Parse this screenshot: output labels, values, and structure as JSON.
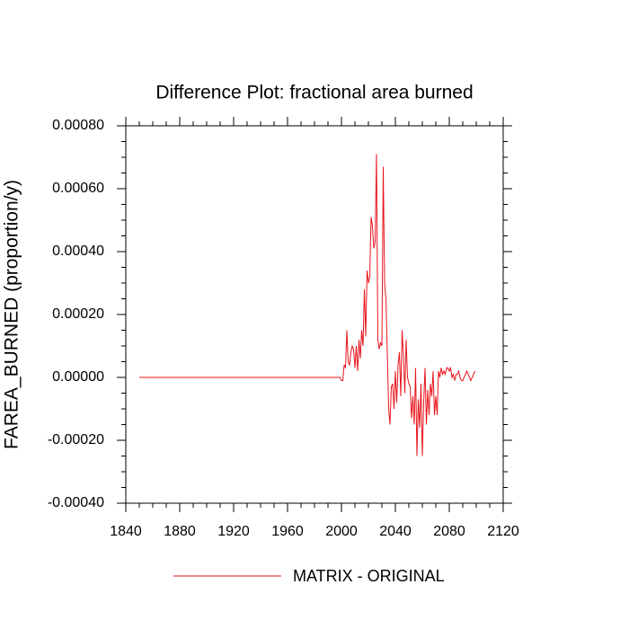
{
  "chart_data": {
    "type": "line",
    "title": "Difference Plot: fractional area burned",
    "ylabel": "FAREA_BURNED  (proportion/y)",
    "xlim": [
      1840,
      2120
    ],
    "xticks": [
      1840,
      1880,
      1920,
      1960,
      2000,
      2040,
      2080,
      2120
    ],
    "ylim": [
      -0.0004,
      0.0008
    ],
    "yticks": [
      {
        "value": -0.0004,
        "label": "-0.00040"
      },
      {
        "value": -0.0002,
        "label": "-0.00020"
      },
      {
        "value": 0,
        "label": "0.00000"
      },
      {
        "value": 0.0002,
        "label": "0.00020"
      },
      {
        "value": 0.0004,
        "label": "0.00040"
      },
      {
        "value": 0.0006,
        "label": "0.00060"
      },
      {
        "value": 0.0008,
        "label": "0.00080"
      }
    ],
    "x": [
      1850,
      1999,
      2000,
      2001,
      2002,
      2003,
      2004,
      2005,
      2006,
      2007,
      2008,
      2009,
      2010,
      2011,
      2012,
      2013,
      2014,
      2015,
      2016,
      2017,
      2018,
      2019,
      2020,
      2021,
      2022,
      2023,
      2024,
      2025,
      2026,
      2027,
      2028,
      2029,
      2030,
      2031,
      2032,
      2033,
      2034,
      2035,
      2036,
      2037,
      2038,
      2039,
      2040,
      2041,
      2042,
      2043,
      2044,
      2045,
      2046,
      2047,
      2048,
      2049,
      2050,
      2051,
      2052,
      2053,
      2054,
      2055,
      2056,
      2057,
      2058,
      2059,
      2060,
      2061,
      2062,
      2063,
      2064,
      2065,
      2066,
      2067,
      2068,
      2069,
      2070,
      2071,
      2072,
      2073,
      2074,
      2075,
      2076,
      2077,
      2078,
      2079,
      2080,
      2081,
      2082,
      2083,
      2084,
      2085,
      2086,
      2087,
      2088,
      2089,
      2090,
      2091,
      2092,
      2093,
      2094,
      2095,
      2096,
      2097,
      2098,
      2099
    ],
    "series": [
      {
        "name": "MATRIX - ORIGINAL",
        "color": "#e8141c",
        "values": [
          0,
          0,
          -1e-05,
          -1e-05,
          4e-05,
          3e-05,
          0.00015,
          5e-05,
          4e-05,
          8e-05,
          0.0001,
          9e-05,
          3e-05,
          0.0001,
          2e-05,
          0.00012,
          6e-05,
          0.00015,
          0.0001,
          0.00028,
          0.00013,
          0.00034,
          0.0003,
          0.00032,
          0.00051,
          0.00048,
          0.00041,
          0.00043,
          0.00071,
          0.00012,
          9e-05,
          0.00011,
          0.0001,
          0.00067,
          0.0003,
          0.00025,
          8e-05,
          -0.0001,
          -0.00015,
          -3e-05,
          -2e-05,
          -0.0001,
          2e-05,
          -8e-05,
          4e-05,
          8e-05,
          -6e-05,
          0.00015,
          7e-05,
          -5e-05,
          0.00012,
          0,
          -2e-05,
          -3e-05,
          -0.00013,
          -6e-05,
          -0.00015,
          3e-05,
          -0.00025,
          -7e-05,
          -0.00016,
          -2e-05,
          -0.00025,
          -8e-05,
          3e-05,
          -0.00015,
          -4e-05,
          -0.00012,
          -2e-05,
          -6e-05,
          2e-05,
          -0.00012,
          -6e-05,
          -0.00012,
          2e-05,
          0,
          3e-05,
          1e-05,
          2e-05,
          1e-05,
          3e-05,
          3e-05,
          2e-05,
          3e-05,
          0,
          1e-05,
          -1e-05,
          1e-05,
          1e-05,
          2e-05,
          0,
          -1e-05,
          -1e-05,
          0,
          1e-05,
          2e-05,
          1e-05,
          0,
          -1e-05,
          0,
          1e-05,
          2e-05
        ]
      }
    ]
  }
}
